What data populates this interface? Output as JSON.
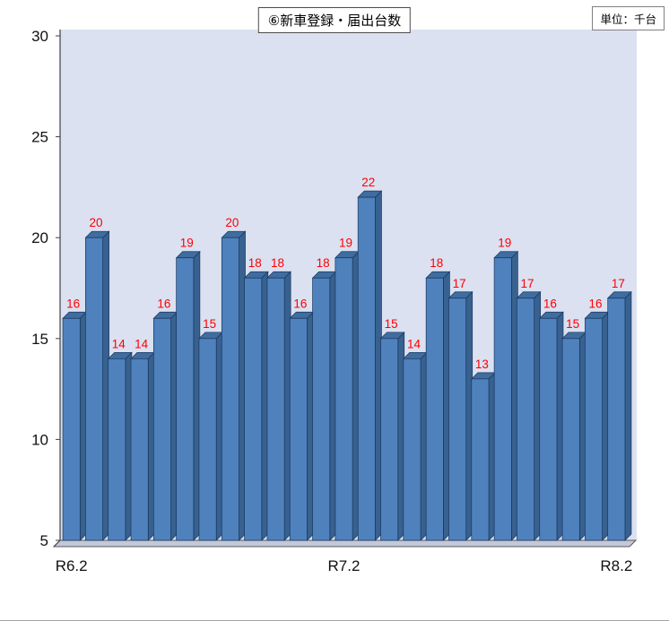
{
  "title": "⑥新車登録・届出台数",
  "unit_label": "単位：千台",
  "chart_data": {
    "type": "bar",
    "style": "3d-column",
    "title": "⑥新車登録・届出台数",
    "unit": "単位：千台",
    "values": [
      16,
      20,
      14,
      14,
      16,
      19,
      15,
      20,
      18,
      18,
      16,
      18,
      19,
      22,
      15,
      14,
      18,
      17,
      13,
      19,
      17,
      16,
      15,
      16,
      17
    ],
    "data_labels": [
      "16",
      "20",
      "14",
      "14",
      "16",
      "19",
      "15",
      "20",
      "18",
      "18",
      "16",
      "18",
      "19",
      "22",
      "15",
      "14",
      "18",
      "17",
      "13",
      "19",
      "17",
      "16",
      "15",
      "16",
      "17"
    ],
    "x_tick_labels": [
      {
        "label": "R6.2",
        "bar_index": 0
      },
      {
        "label": "R7.2",
        "bar_index": 12
      },
      {
        "label": "R8.2",
        "bar_index": 24
      }
    ],
    "y_ticks": [
      5,
      10,
      15,
      20,
      25,
      30
    ],
    "ylim": [
      5,
      30
    ],
    "xlabel": "",
    "ylabel": "",
    "grid": false,
    "legend": "none",
    "colors": {
      "bar_front": "#4f81bd",
      "bar_side": "#38618f",
      "bar_top": "#406d9f",
      "bar_outline": "#17375e",
      "plot_bg": "#dbe1f1",
      "floor": "#c3c9d9",
      "data_label": "#ff0000",
      "axis_text": "#111111"
    }
  }
}
